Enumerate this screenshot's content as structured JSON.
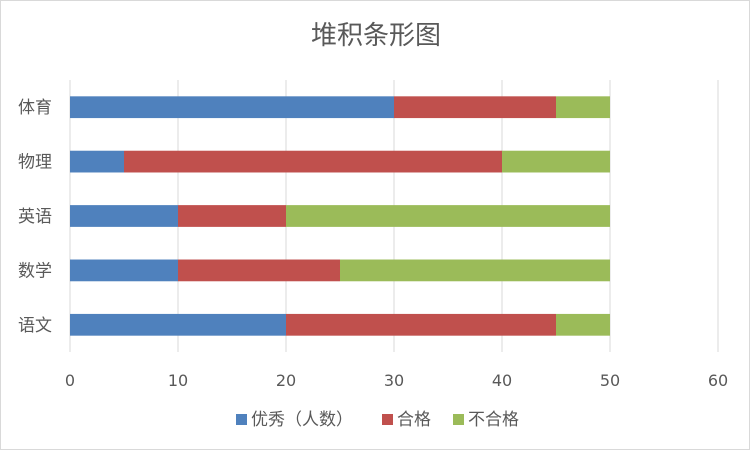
{
  "chart_data": {
    "type": "bar",
    "orientation": "horizontal",
    "stacked": true,
    "title": "堆积条形图",
    "categories": [
      "语文",
      "数学",
      "英语",
      "物理",
      "体育"
    ],
    "series": [
      {
        "name": "优秀（人数）",
        "color": "#4f81bd",
        "values": [
          20,
          10,
          10,
          5,
          30
        ]
      },
      {
        "name": "合格",
        "color": "#c0504d",
        "values": [
          25,
          15,
          10,
          35,
          15
        ]
      },
      {
        "name": "不合格",
        "color": "#9bbb59",
        "values": [
          5,
          25,
          30,
          10,
          5
        ]
      }
    ],
    "xlim": [
      0,
      60
    ],
    "xticks": [
      0,
      10,
      20,
      30,
      40,
      50,
      60
    ],
    "grid": true,
    "legend_position": "bottom"
  }
}
